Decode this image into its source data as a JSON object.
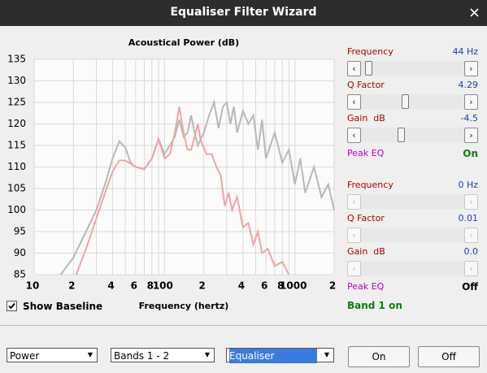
{
  "window": {
    "title": "Equaliser Filter Wizard"
  },
  "chart_data": {
    "type": "line",
    "title": "Acoustical Power (dB)",
    "x_label": "Frequency (hertz)",
    "xscale": "log",
    "xlim": [
      10,
      2000
    ],
    "ylim": [
      85,
      135
    ],
    "yticks": [
      85,
      90,
      95,
      100,
      105,
      110,
      115,
      120,
      125,
      130,
      135
    ],
    "grid": true,
    "xticks": [
      10,
      {
        "value": 20,
        "label": "2"
      },
      {
        "value": 30,
        "label": null
      },
      {
        "value": 40,
        "label": "4"
      },
      {
        "value": 50,
        "label": null
      },
      {
        "value": 60,
        "label": "6"
      },
      {
        "value": 70,
        "label": null
      },
      {
        "value": 80,
        "label": "8"
      },
      {
        "value": 90,
        "label": null
      },
      100,
      {
        "value": 200,
        "label": "2"
      },
      {
        "value": 300,
        "label": null
      },
      {
        "value": 400,
        "label": "4"
      },
      {
        "value": 500,
        "label": null
      },
      {
        "value": 600,
        "label": "6"
      },
      {
        "value": 700,
        "label": null
      },
      {
        "value": 800,
        "label": "8"
      },
      {
        "value": 900,
        "label": null
      },
      1000,
      {
        "value": 2000,
        "label": "2"
      }
    ],
    "series": [
      {
        "name": "Baseline",
        "color": "#b8b8b8",
        "x": [
          16,
          20,
          25,
          30,
          35,
          40,
          45,
          50,
          55,
          60,
          70,
          80,
          90,
          100,
          110,
          120,
          130,
          140,
          150,
          160,
          170,
          180,
          200,
          220,
          240,
          260,
          280,
          300,
          320,
          340,
          360,
          400,
          440,
          480,
          520,
          560,
          600,
          700,
          800,
          900,
          1000,
          1100,
          1200,
          1400,
          1600,
          1800,
          2000
        ],
        "values": [
          85,
          89,
          95,
          100,
          106,
          112,
          116,
          114.5,
          111,
          110,
          109.5,
          112,
          116.5,
          113,
          115,
          117,
          121,
          117,
          118,
          122,
          118,
          115,
          118,
          122,
          125,
          119,
          124,
          125,
          120,
          124,
          118,
          123,
          120,
          122,
          114,
          121,
          112,
          118,
          111,
          114,
          106,
          112,
          104,
          110,
          103,
          106,
          100
        ]
      },
      {
        "name": "Equalised",
        "color": "#f2a3a3",
        "x": [
          21,
          25,
          30,
          35,
          40,
          45,
          50,
          60,
          70,
          80,
          90,
          100,
          110,
          120,
          130,
          140,
          150,
          160,
          170,
          180,
          190,
          210,
          230,
          250,
          270,
          290,
          310,
          330,
          360,
          400,
          440,
          480,
          520,
          560,
          620,
          700,
          800,
          900
        ],
        "values": [
          85,
          91,
          98,
          104,
          109,
          111.5,
          111.5,
          110,
          109.5,
          112,
          116.5,
          112,
          113,
          118,
          124,
          118,
          114,
          114,
          117,
          120,
          116,
          113,
          113,
          110,
          108,
          101,
          104,
          100,
          103,
          96,
          97,
          92,
          95,
          90,
          91,
          87,
          88,
          85
        ]
      }
    ]
  },
  "baseline_checkbox": {
    "label": "Show Baseline",
    "checked": true
  },
  "bands": [
    {
      "frequency": {
        "label": "Frequency",
        "value": "44 Hz"
      },
      "q_factor": {
        "label": "Q Factor",
        "value": "4.29"
      },
      "gain": {
        "label": "Gain  dB",
        "value": "-4.5"
      },
      "peak_eq": {
        "label": "Peak EQ",
        "state": "On"
      }
    },
    {
      "frequency": {
        "label": "Frequency",
        "value": "0 Hz"
      },
      "q_factor": {
        "label": "Q Factor",
        "value": "0.01"
      },
      "gain": {
        "label": "Gain  dB",
        "value": "0.0"
      },
      "peak_eq": {
        "label": "Peak EQ",
        "state": "Off"
      }
    }
  ],
  "status": "Band 1 on",
  "dropdowns": [
    "Power",
    "Bands 1 - 2",
    "Equaliser"
  ],
  "buttons": [
    "On",
    "Off"
  ]
}
